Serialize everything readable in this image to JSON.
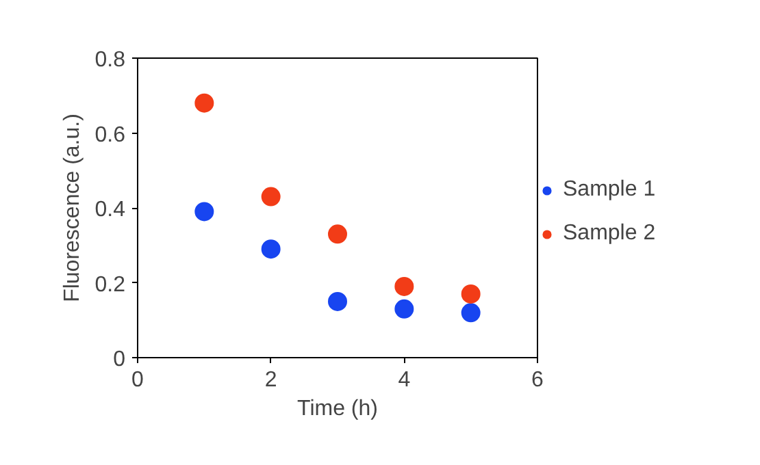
{
  "chart_data": {
    "type": "scatter",
    "xlabel": "Time (h)",
    "ylabel": "Fluorescence (a.u.)",
    "x": [
      1,
      2,
      3,
      4,
      5
    ],
    "series": [
      {
        "name": "Sample 1",
        "color": "#1845f0",
        "values": [
          0.39,
          0.29,
          0.15,
          0.13,
          0.12
        ]
      },
      {
        "name": "Sample 2",
        "color": "#f23c17",
        "values": [
          0.68,
          0.43,
          0.33,
          0.19,
          0.17
        ]
      }
    ],
    "xlim": [
      0,
      6
    ],
    "xticks": [
      0,
      2,
      4,
      6
    ],
    "ylim": [
      0,
      0.8
    ],
    "yticks": [
      0,
      0.2,
      0.4,
      0.6,
      0.8
    ],
    "grid": false,
    "legend": "right",
    "marker": "circle"
  }
}
